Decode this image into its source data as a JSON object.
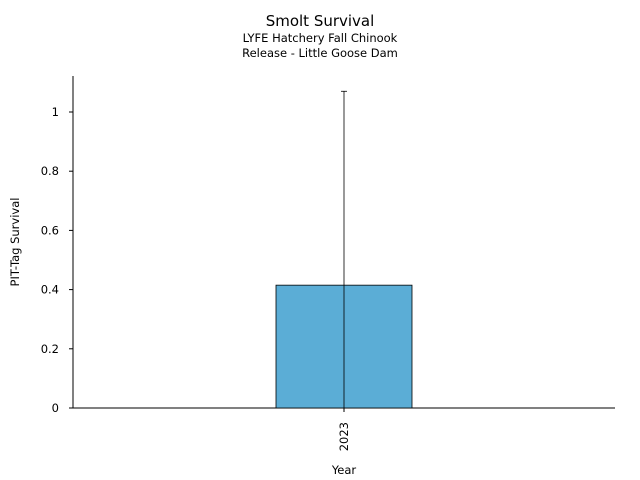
{
  "chart_data": {
    "type": "bar",
    "title": "Smolt Survival",
    "subtitle_lines": [
      "LYFE Hatchery Fall Chinook",
      "Release - Little Goose Dam"
    ],
    "xlabel": "Year",
    "ylabel": "PIT-Tag Survival",
    "categories": [
      "2023"
    ],
    "values": [
      0.415
    ],
    "error_upper": [
      1.07
    ],
    "ylim": [
      0,
      1.12
    ],
    "yticks": [
      0,
      0.2,
      0.4,
      0.6,
      0.8,
      1
    ],
    "ytick_labels": [
      "0",
      "0.2",
      "0.4",
      "0.6",
      "0.8",
      "1"
    ],
    "bar_color": "#5badd6",
    "grid": false,
    "legend": "none"
  }
}
